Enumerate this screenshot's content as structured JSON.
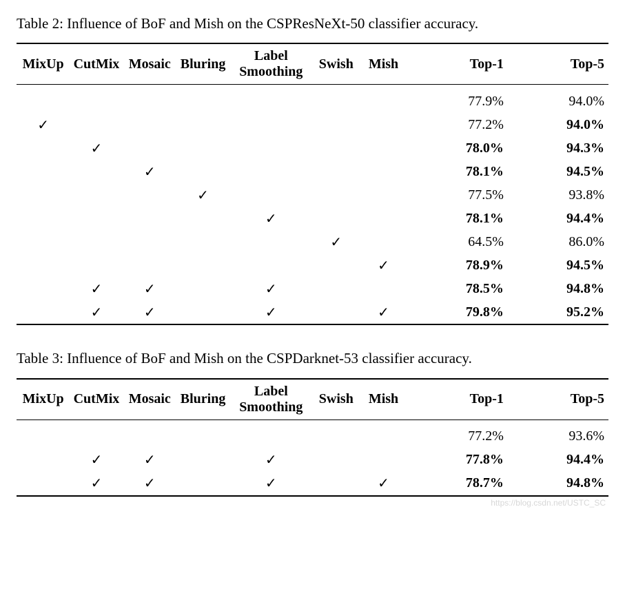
{
  "checkmark": "✓",
  "columns": [
    "MixUp",
    "CutMix",
    "Mosaic",
    "Bluring",
    "Label\nSmoothing",
    "Swish",
    "Mish",
    "Top-1",
    "Top-5"
  ],
  "table2": {
    "caption": "Table 2: Influence of BoF and Mish on the CSPResNeXt-50 classifier accuracy.",
    "rows": [
      {
        "checks": [
          0,
          0,
          0,
          0,
          0,
          0,
          0
        ],
        "top1": "77.9%",
        "top5": "94.0%",
        "b1": false,
        "b5": false
      },
      {
        "checks": [
          1,
          0,
          0,
          0,
          0,
          0,
          0
        ],
        "top1": "77.2%",
        "top5": "94.0%",
        "b1": false,
        "b5": true
      },
      {
        "checks": [
          0,
          1,
          0,
          0,
          0,
          0,
          0
        ],
        "top1": "78.0%",
        "top5": "94.3%",
        "b1": true,
        "b5": true
      },
      {
        "checks": [
          0,
          0,
          1,
          0,
          0,
          0,
          0
        ],
        "top1": "78.1%",
        "top5": "94.5%",
        "b1": true,
        "b5": true
      },
      {
        "checks": [
          0,
          0,
          0,
          1,
          0,
          0,
          0
        ],
        "top1": "77.5%",
        "top5": "93.8%",
        "b1": false,
        "b5": false
      },
      {
        "checks": [
          0,
          0,
          0,
          0,
          1,
          0,
          0
        ],
        "top1": "78.1%",
        "top5": "94.4%",
        "b1": true,
        "b5": true
      },
      {
        "checks": [
          0,
          0,
          0,
          0,
          0,
          1,
          0
        ],
        "top1": "64.5%",
        "top5": "86.0%",
        "b1": false,
        "b5": false
      },
      {
        "checks": [
          0,
          0,
          0,
          0,
          0,
          0,
          1
        ],
        "top1": "78.9%",
        "top5": "94.5%",
        "b1": true,
        "b5": true
      },
      {
        "checks": [
          0,
          1,
          1,
          0,
          1,
          0,
          0
        ],
        "top1": "78.5%",
        "top5": "94.8%",
        "b1": true,
        "b5": true
      },
      {
        "checks": [
          0,
          1,
          1,
          0,
          1,
          0,
          1
        ],
        "top1": "79.8%",
        "top5": "95.2%",
        "b1": true,
        "b5": true
      }
    ]
  },
  "table3": {
    "caption": "Table 3: Influence of BoF and Mish on the CSPDarknet-53 classifier accuracy.",
    "rows": [
      {
        "checks": [
          0,
          0,
          0,
          0,
          0,
          0,
          0
        ],
        "top1": "77.2%",
        "top5": "93.6%",
        "b1": false,
        "b5": false
      },
      {
        "checks": [
          0,
          1,
          1,
          0,
          1,
          0,
          0
        ],
        "top1": "77.8%",
        "top5": "94.4%",
        "b1": true,
        "b5": true
      },
      {
        "checks": [
          0,
          1,
          1,
          0,
          1,
          0,
          1
        ],
        "top1": "78.7%",
        "top5": "94.8%",
        "b1": true,
        "b5": true
      }
    ]
  },
  "watermark": "https://blog.csdn.net/USTC_SC",
  "col_widths_pct": [
    9,
    9,
    9,
    9,
    14,
    8,
    8,
    17,
    17
  ]
}
